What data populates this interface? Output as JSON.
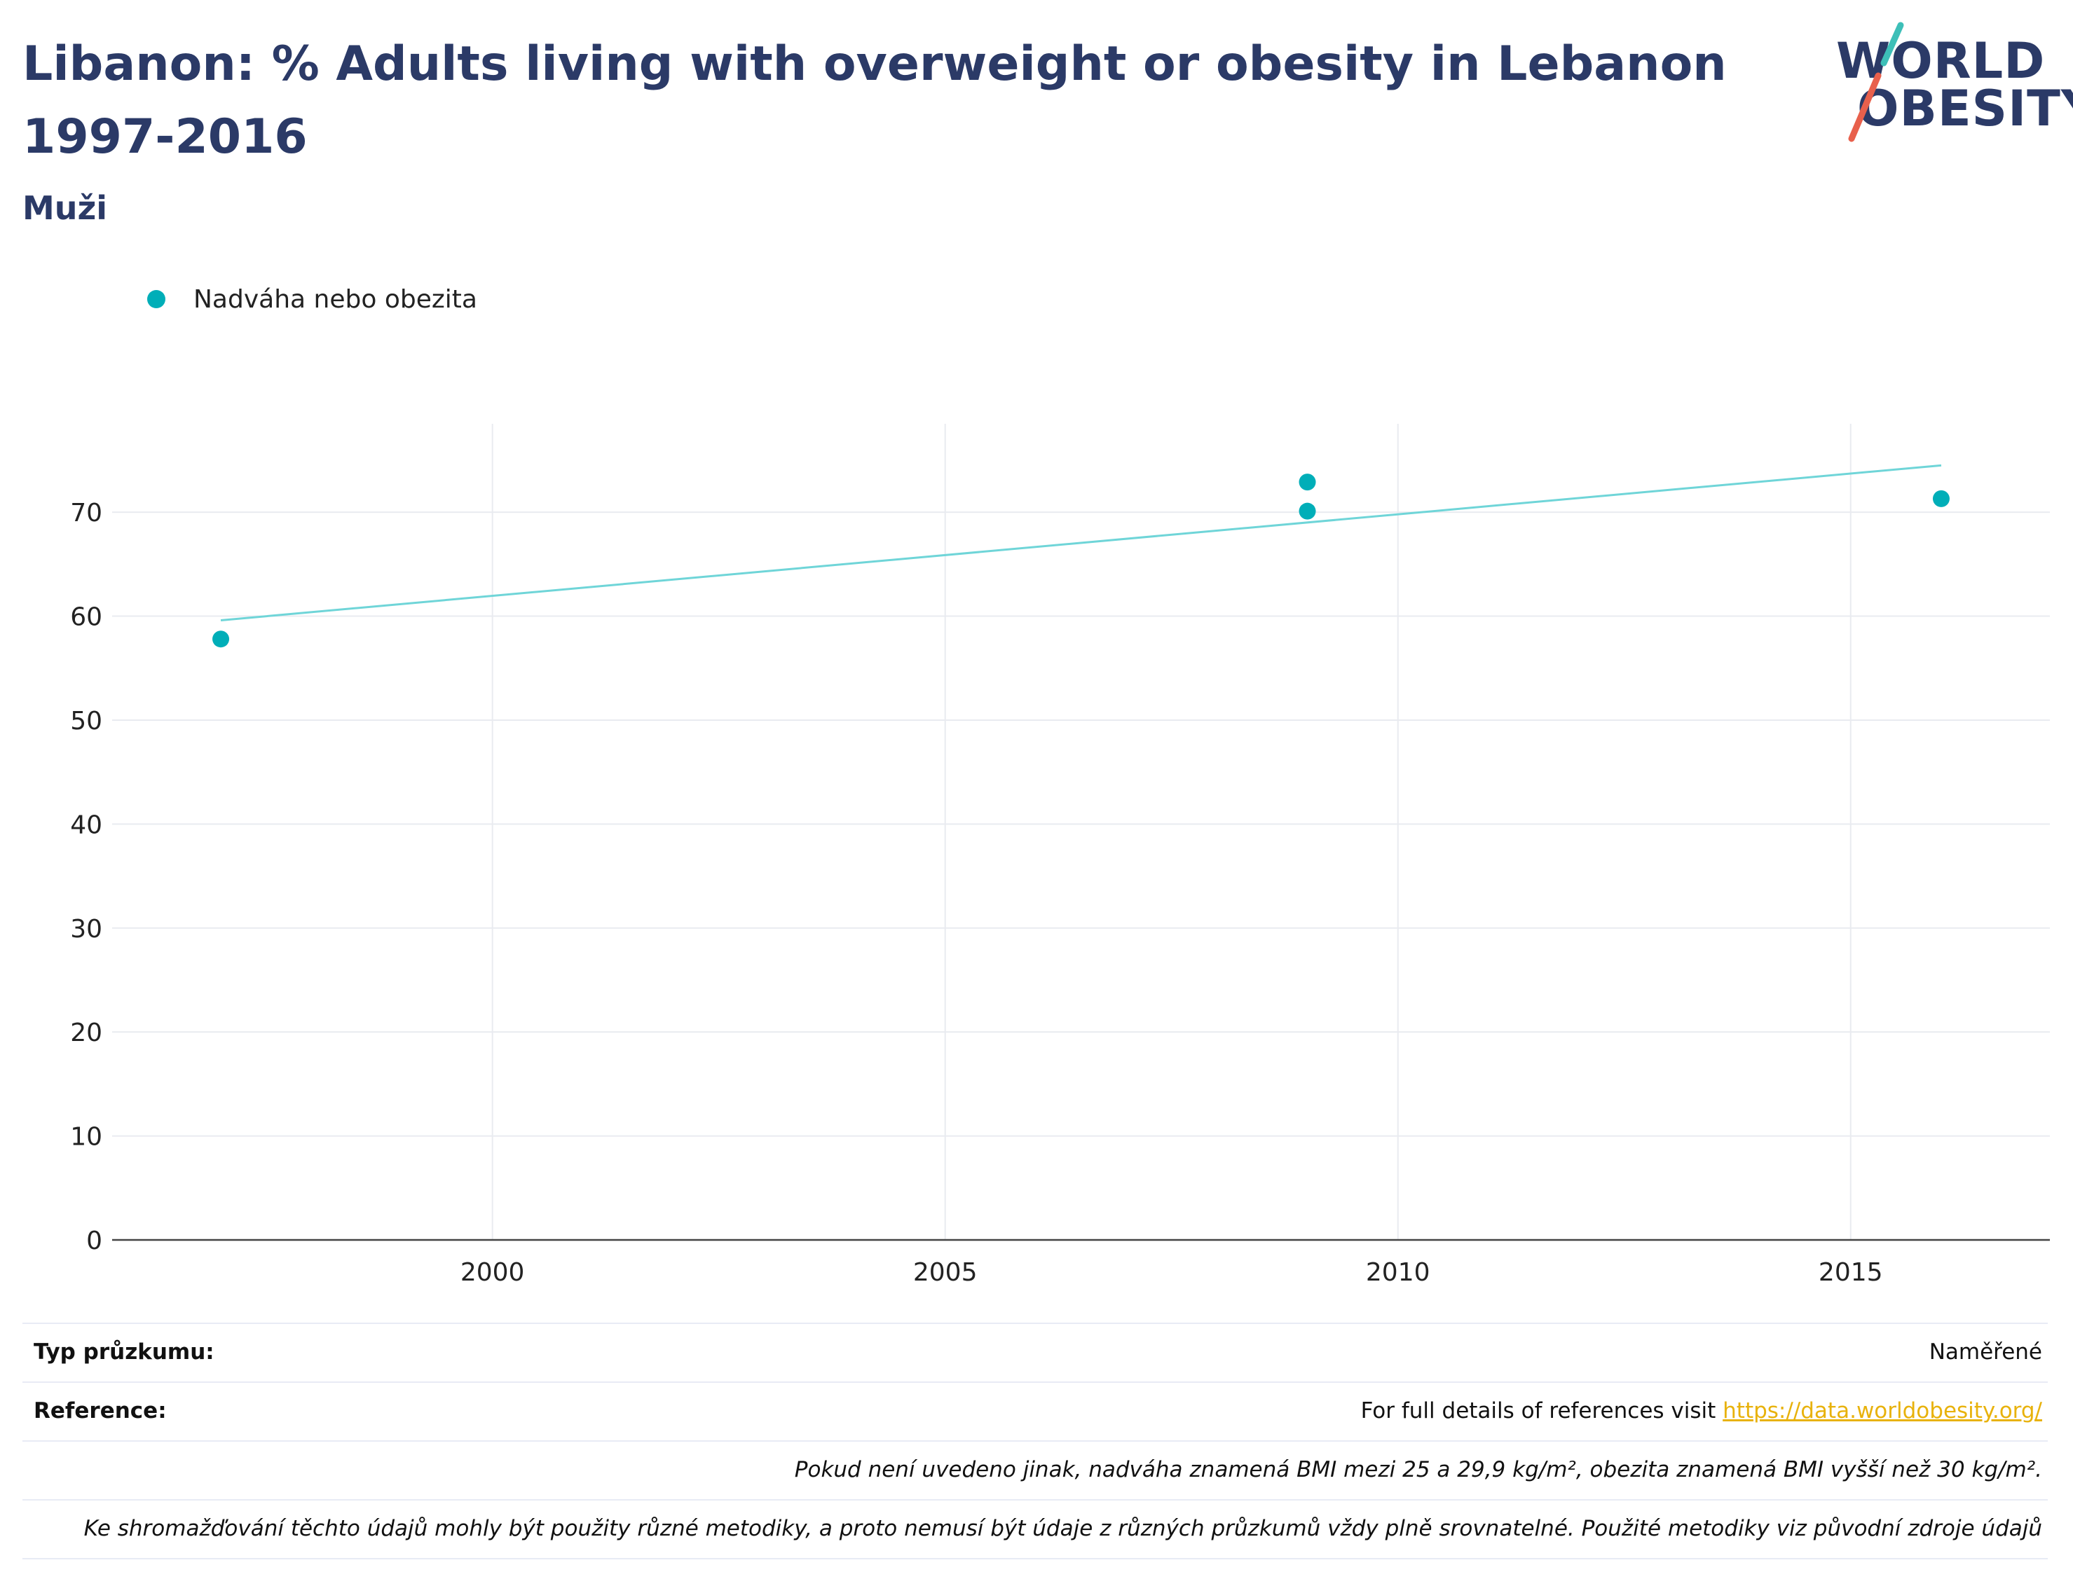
{
  "header": {
    "title": "Libanon: % Adults living with overweight or obesity in Lebanon 1997-2016",
    "subtitle": "Muži"
  },
  "logo": {
    "line1": "WORLD",
    "line2": "OBESITY",
    "accent_colors": [
      "#3dbfb8",
      "#e8604c"
    ]
  },
  "legend": {
    "label": "Nadváha nebo obezita",
    "color": "#00aeb8"
  },
  "chart_data": {
    "type": "scatter",
    "title": "Libanon: % Adults living with overweight or obesity in Lebanon 1997-2016",
    "subtitle": "Muži",
    "xlabel": "",
    "ylabel": "",
    "xlim": [
      1995.8,
      2017.2
    ],
    "ylim": [
      0,
      78.5
    ],
    "xticks": [
      2000,
      2005,
      2010,
      2015
    ],
    "yticks": [
      0,
      10,
      20,
      30,
      40,
      50,
      60,
      70
    ],
    "grid": true,
    "legend_position": "top-left",
    "series": [
      {
        "name": "Nadváha nebo obezita",
        "color": "#00aeb8",
        "points": [
          {
            "x": 1997,
            "y": 57.8
          },
          {
            "x": 2009,
            "y": 72.9
          },
          {
            "x": 2009,
            "y": 70.1
          },
          {
            "x": 2016,
            "y": 71.3
          }
        ]
      }
    ],
    "trendline": {
      "color": "#6fd5d8",
      "x": [
        1997,
        2016
      ],
      "y": [
        59.6,
        74.5
      ]
    }
  },
  "footer": {
    "survey_type_label": "Typ průzkumu:",
    "survey_type_value": "Naměřené",
    "reference_label": "Reference:",
    "reference_text": "For full details of references visit ",
    "reference_link": "https://data.worldobesity.org/",
    "note1": "Pokud není uvedeno jinak, nadváha znamená BMI mezi 25 a 29,9 kg/m², obezita znamená BMI vyšší než 30 kg/m².",
    "note2": "Ke shromažďování těchto údajů mohly být použity různé metodiky, a proto nemusí být údaje z různých průzkumů vždy plně srovnatelné. Použité metodiky viz původní zdroje údajů"
  }
}
